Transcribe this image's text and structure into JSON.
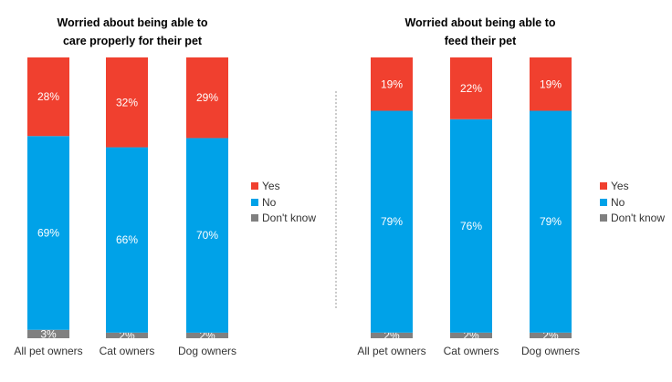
{
  "chart_data": [
    {
      "type": "bar",
      "stacked": true,
      "percent_stacked": true,
      "title_lines": [
        "Worried about being able to",
        "care properly for their pet"
      ],
      "categories": [
        "All pet owners",
        "Cat owners",
        "Dog owners"
      ],
      "series": [
        {
          "name": "Don't know",
          "color": "#808080",
          "values": [
            3,
            2,
            2
          ]
        },
        {
          "name": "No",
          "color": "#00a2e8",
          "values": [
            69,
            66,
            70
          ]
        },
        {
          "name": "Yes",
          "color": "#f0402f",
          "values": [
            28,
            32,
            29
          ]
        }
      ],
      "legend": [
        "Yes",
        "No",
        "Don't know"
      ],
      "legend_position": "right",
      "grid": false
    },
    {
      "type": "bar",
      "stacked": true,
      "percent_stacked": true,
      "title_lines": [
        "Worried about being able to",
        "feed their pet"
      ],
      "categories": [
        "All pet owners",
        "Cat owners",
        "Dog owners"
      ],
      "series": [
        {
          "name": "Don't know",
          "color": "#808080",
          "values": [
            2,
            2,
            2
          ]
        },
        {
          "name": "No",
          "color": "#00a2e8",
          "values": [
            79,
            76,
            79
          ]
        },
        {
          "name": "Yes",
          "color": "#f0402f",
          "values": [
            19,
            22,
            19
          ]
        }
      ],
      "legend": [
        "Yes",
        "No",
        "Don't know"
      ],
      "legend_position": "right",
      "grid": false
    }
  ]
}
